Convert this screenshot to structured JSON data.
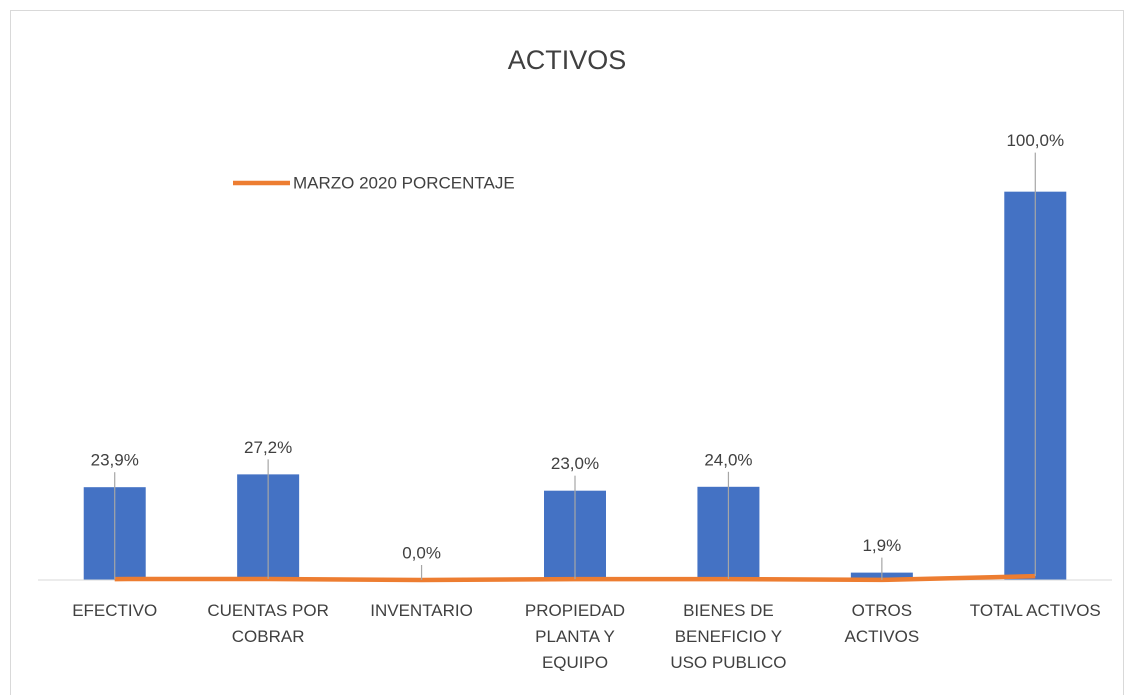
{
  "chart_data": {
    "type": "bar",
    "title": "ACTIVOS",
    "categories": [
      "EFECTIVO",
      "CUENTAS POR COBRAR",
      "INVENTARIO",
      "PROPIEDAD PLANTA Y EQUIPO",
      "BIENES DE BENEFICIO Y USO PUBLICO",
      "OTROS ACTIVOS",
      "TOTAL ACTIVOS"
    ],
    "values": [
      23.9,
      27.2,
      0,
      23.0,
      24.0,
      1.9,
      100.0
    ],
    "value_labels": [
      "23,9%",
      "27,2%",
      "0,0%",
      "23,0%",
      "24,0%",
      "1,9%",
      "100,0%"
    ],
    "color": "#4472c4",
    "series": [
      {
        "name": "MARZO 2020 PORCENTAJE",
        "color": "#ed7d31",
        "type": "line",
        "values": [
          0.239,
          0.272,
          0,
          0.23,
          0.24,
          0.019,
          1.0
        ]
      }
    ],
    "ylim": [
      0,
      120
    ],
    "grid": false,
    "legend": "top-left"
  }
}
